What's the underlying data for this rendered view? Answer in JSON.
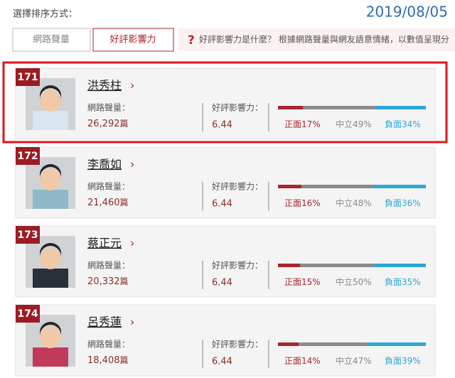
{
  "header": {
    "sort_label": "選擇排序方式：",
    "date": "2019/08/05"
  },
  "tabs": [
    "網路聲量",
    "好評影響力"
  ],
  "info": {
    "icon": "?",
    "text": "好評影響力是什麼？ 根據網路聲量與網友語意情緒，以數值呈現分析針"
  },
  "labels": {
    "volume": "網路聲量：",
    "influence": "好評影響力：",
    "unit": "篇",
    "arrow": "›"
  },
  "sentiment_labels": [
    "正面",
    "中立",
    "負面"
  ],
  "sentiment_colors": [
    "#a8262d",
    "#8a8a8a",
    "#2ea6d6"
  ],
  "items": [
    {
      "rank": "171",
      "name": "洪秀柱",
      "volume": "26,292",
      "influence": "6.44",
      "sentiment": {
        "values": [
          17,
          49,
          34
        ],
        "value_labels": [
          "17%",
          "49%",
          "34%"
        ]
      },
      "highlighted": true
    },
    {
      "rank": "172",
      "name": "李喬如",
      "volume": "21,460",
      "influence": "6.44",
      "sentiment": {
        "values": [
          16,
          48,
          36
        ],
        "value_labels": [
          "16%",
          "48%",
          "36%"
        ]
      },
      "highlighted": false
    },
    {
      "rank": "173",
      "name": "蔡正元",
      "volume": "20,332",
      "influence": "6.44",
      "sentiment": {
        "values": [
          15,
          50,
          35
        ],
        "value_labels": [
          "15%",
          "50%",
          "35%"
        ]
      },
      "highlighted": false
    },
    {
      "rank": "174",
      "name": "呂秀蓮",
      "volume": "18,408",
      "influence": "6.44",
      "sentiment": {
        "values": [
          14,
          47,
          39
        ],
        "value_labels": [
          "14%",
          "47%",
          "39%"
        ]
      },
      "highlighted": false
    }
  ]
}
